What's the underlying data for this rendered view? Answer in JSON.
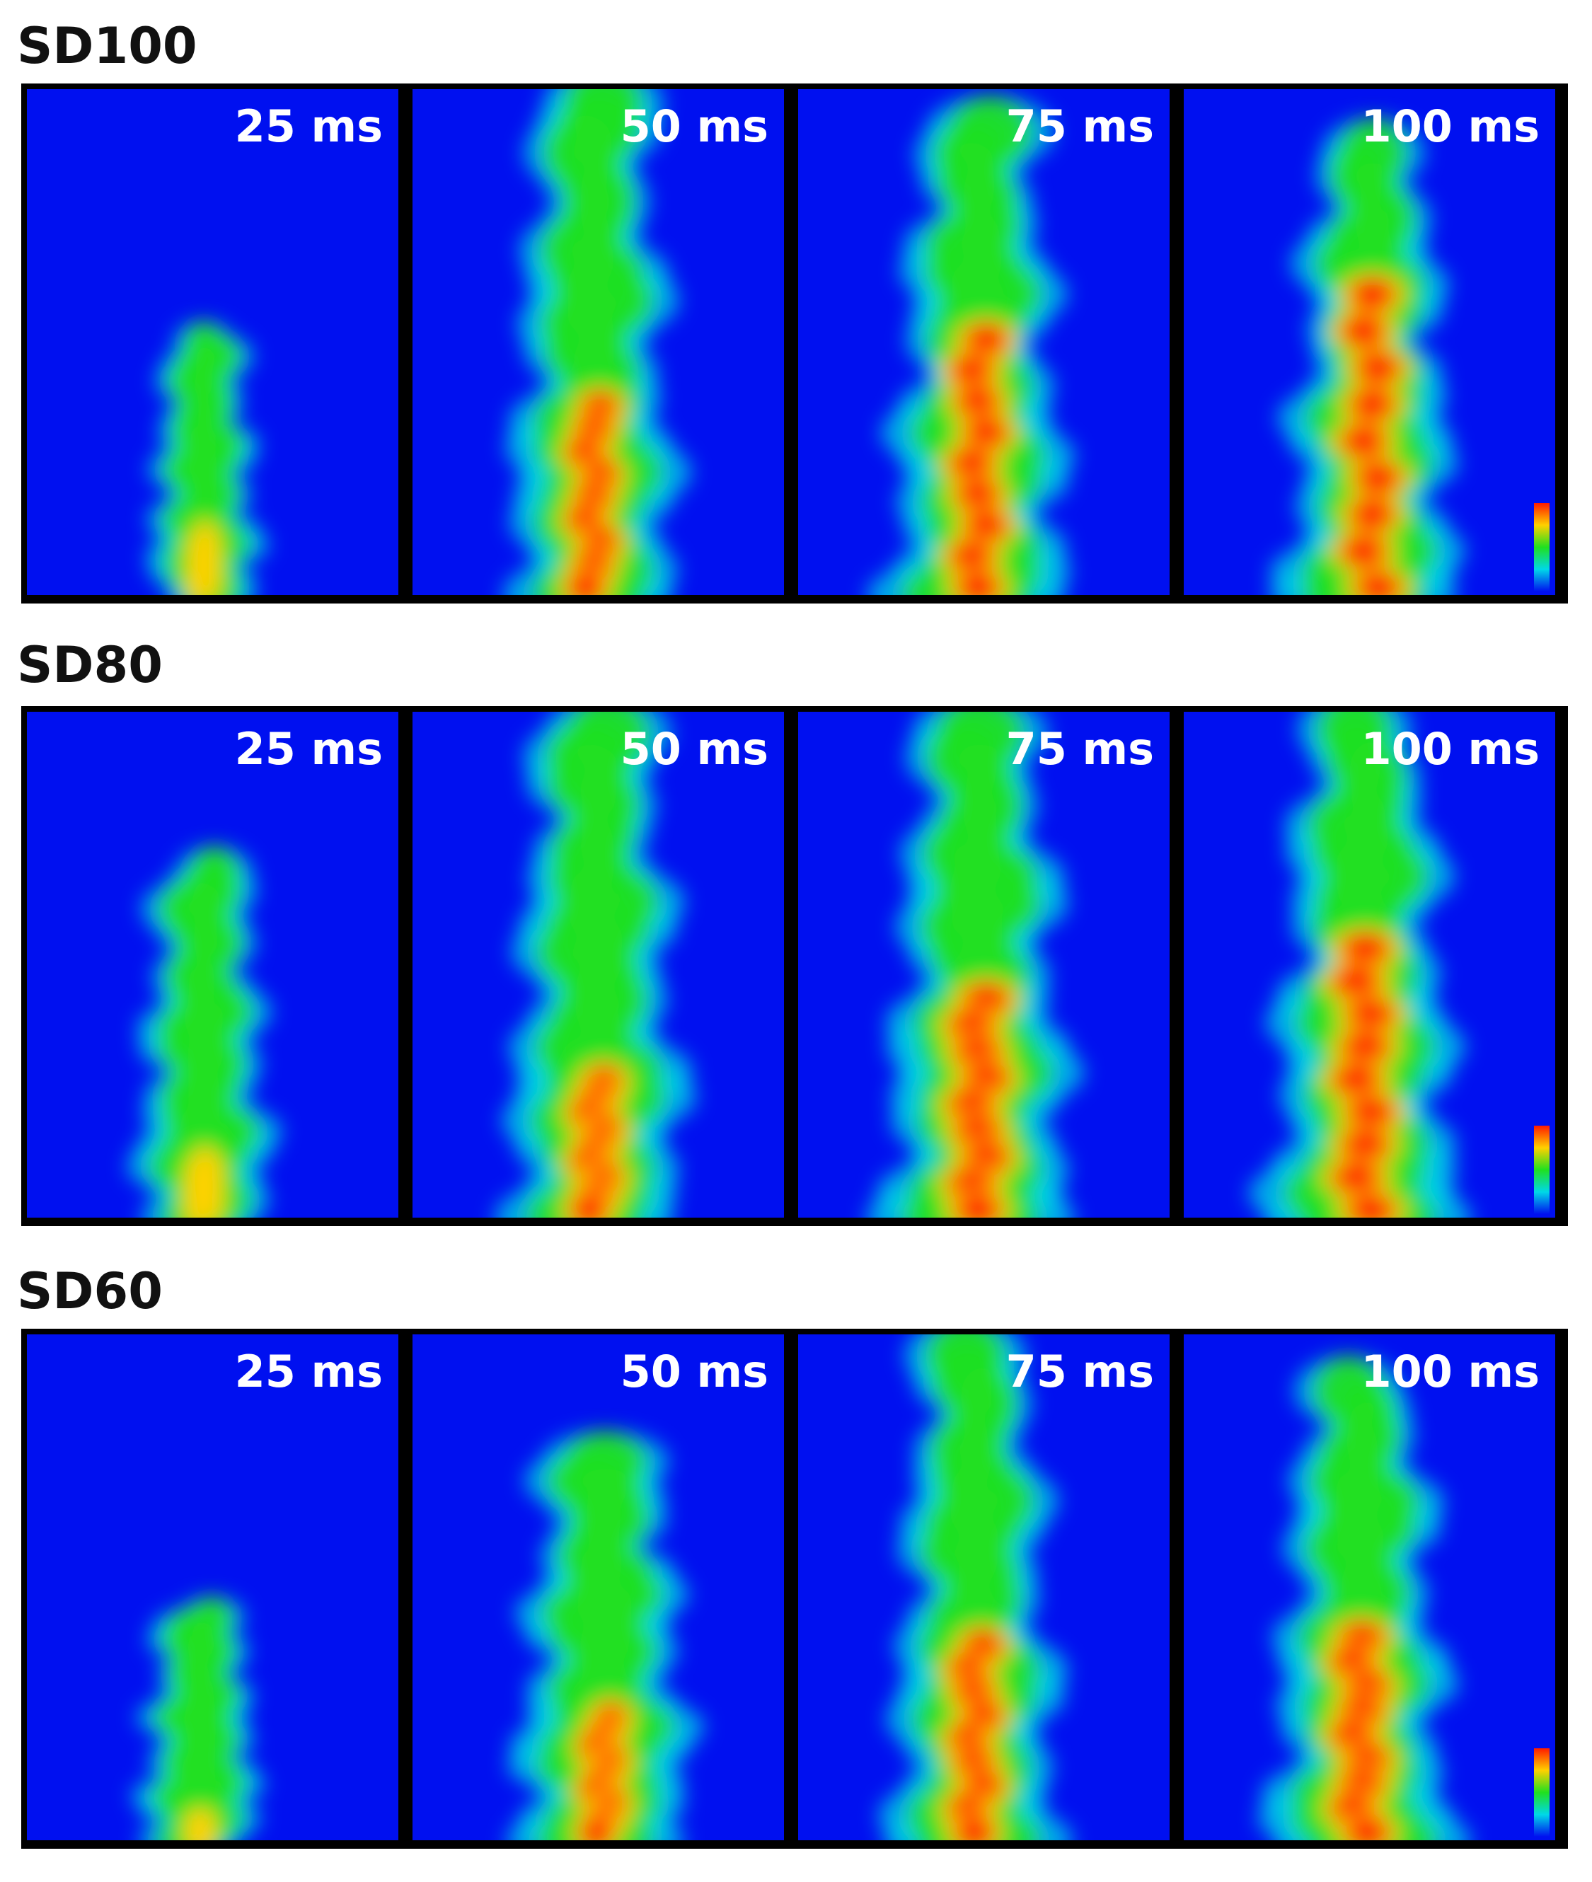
{
  "rows": [
    {
      "title": "SD100",
      "panels": [
        {
          "time": "25 ms"
        },
        {
          "time": "50 ms"
        },
        {
          "time": "75 ms"
        },
        {
          "time": "100 ms",
          "colorbar": true
        }
      ]
    },
    {
      "title": "SD80",
      "panels": [
        {
          "time": "25 ms"
        },
        {
          "time": "50 ms"
        },
        {
          "time": "75 ms"
        },
        {
          "time": "100 ms",
          "colorbar": true
        }
      ]
    },
    {
      "title": "SD60",
      "panels": [
        {
          "time": "25 ms"
        },
        {
          "time": "50 ms"
        },
        {
          "time": "75 ms"
        },
        {
          "time": "100 ms",
          "colorbar": true
        }
      ]
    }
  ],
  "colors": {
    "background": "#0010f0",
    "low": "#00d8e8",
    "mid": "#20e020",
    "high": "#ffd000",
    "peak": "#ff1a00"
  }
}
